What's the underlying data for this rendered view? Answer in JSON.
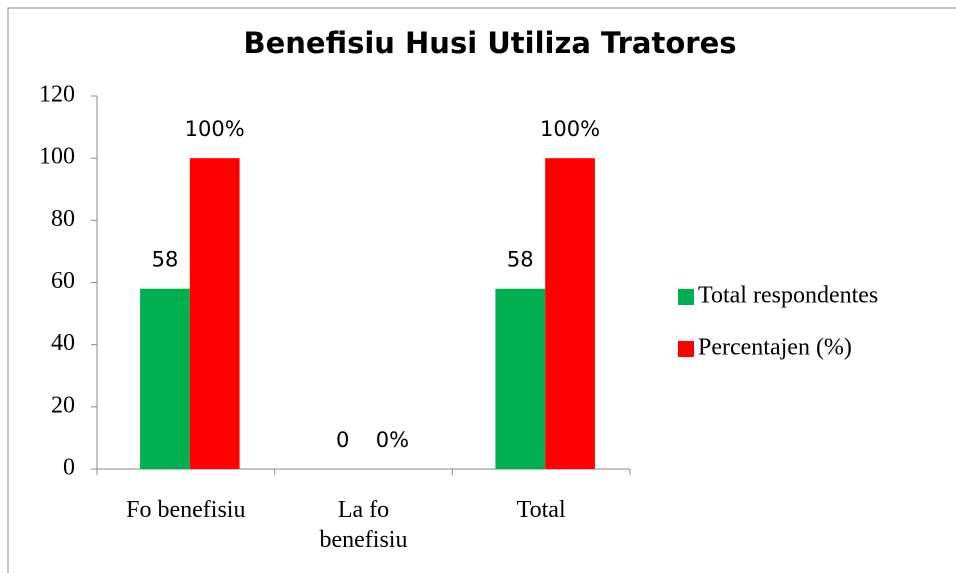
{
  "chart_data": {
    "type": "bar",
    "title": "Benefisiu Husi Utiliza Tratores",
    "categories": [
      "Fo benefisiu",
      "La fo benefisiu",
      "Total"
    ],
    "series": [
      {
        "name": "Total respondentes",
        "color": "#00b050",
        "values": [
          58,
          0,
          58
        ]
      },
      {
        "name": "Percentajen (%)",
        "color": "#ff0000",
        "values": [
          100,
          0,
          100
        ],
        "value_labels": [
          "100%",
          "0%",
          "100%"
        ]
      }
    ],
    "ylim": [
      0,
      120
    ],
    "yticks": [
      0,
      20,
      40,
      60,
      80,
      100,
      120
    ],
    "grid": false,
    "legend": "right"
  }
}
